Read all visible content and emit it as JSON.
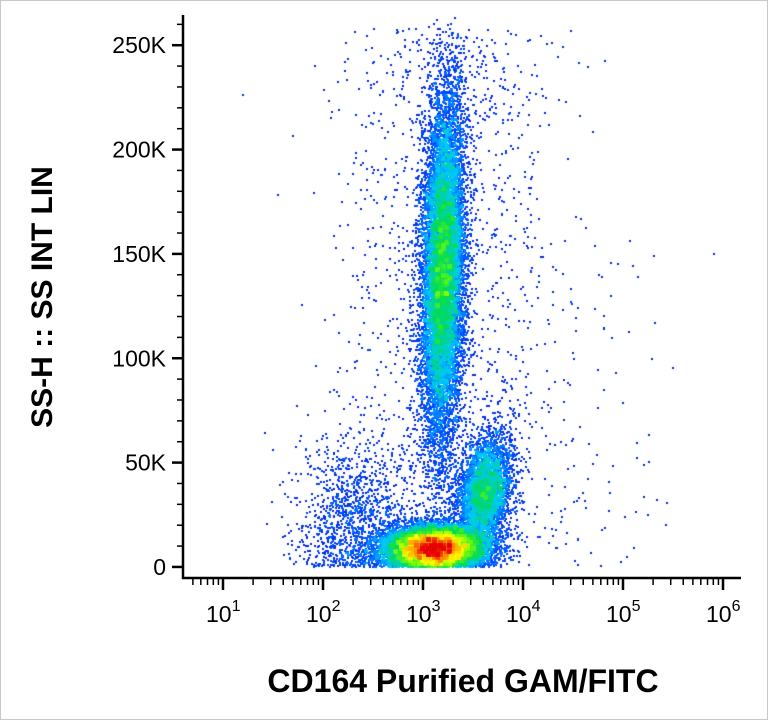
{
  "chart_data": {
    "type": "scatter",
    "subtype": "flow-cytometry-pseudocolor-density",
    "title": "",
    "xlabel": "CD164 Purified GAM/FITC",
    "ylabel": "SS-H :: SS INT LIN",
    "x_scale": "log10",
    "x_range_log10": [
      0.61,
      6.18
    ],
    "x_tick_base": "10",
    "x_tick_exponents": [
      1,
      2,
      3,
      4,
      5,
      6
    ],
    "y_scale": "linear",
    "y_range": [
      -5300,
      264000
    ],
    "y_major_tick_values": [
      0,
      50000,
      100000,
      150000,
      200000,
      250000
    ],
    "y_major_tick_labels": [
      "0",
      "50K",
      "100K",
      "150K",
      "200K",
      "250K"
    ],
    "y_minor_tick_step": 10000,
    "axis_color": "#000000",
    "background_color": "#ffffff",
    "colormap_positions": [
      0,
      0.2,
      0.35,
      0.5,
      0.65,
      0.75,
      0.87,
      1
    ],
    "colormap": [
      "#0000c8",
      "#0050ff",
      "#00c8ff",
      "#00dc50",
      "#82ff00",
      "#ffff00",
      "#ff8c00",
      "#e60000"
    ],
    "populations": [
      {
        "name": "high-ssc-vertical-population",
        "n": 14000,
        "x_log_mean": 3.2,
        "x_log_sd": 0.105,
        "y_mean": 143000,
        "y_sd": 40000,
        "rho": 0.18
      },
      {
        "name": "low-ssc-dense-population",
        "n": 16000,
        "x_log_mean": 3.12,
        "x_log_sd": 0.24,
        "y_mean": 9000,
        "y_sd": 5200,
        "rho": 0.05
      },
      {
        "name": "mid-right-cluster",
        "n": 4500,
        "x_log_mean": 3.62,
        "x_log_sd": 0.13,
        "y_mean": 36000,
        "y_sd": 13000,
        "rho": 0.25
      },
      {
        "name": "left-sparse-scatter",
        "n": 1300,
        "x_log_mean": 2.3,
        "x_log_sd": 0.28,
        "y_mean": 20000,
        "y_sd": 22000,
        "rho": 0
      },
      {
        "name": "broad-background",
        "n": 1600,
        "x_log_mean": 3.25,
        "x_log_sd": 0.55,
        "y_dist": "uniform",
        "y_min": 0,
        "y_max": 258000
      },
      {
        "name": "right-background",
        "n": 120,
        "x_log_mean": 4.4,
        "x_log_sd": 0.55,
        "y_dist": "uniform",
        "y_min": 0,
        "y_max": 160000
      }
    ]
  }
}
